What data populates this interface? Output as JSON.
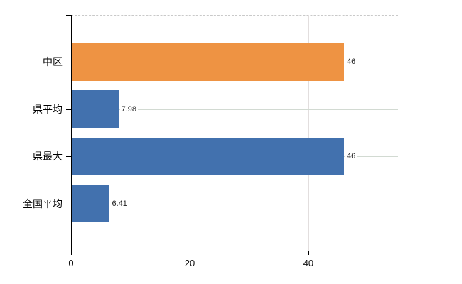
{
  "chart_data": {
    "type": "bar",
    "orientation": "horizontal",
    "title": "",
    "xlabel": "",
    "ylabel": "",
    "categories": [
      "中区",
      "県平均",
      "県最大",
      "全国平均"
    ],
    "values": [
      46,
      7.98,
      46,
      6.41
    ],
    "value_labels": [
      "46",
      "7.98",
      "46",
      "6.41"
    ],
    "bar_colors": [
      "#ee9343",
      "#4271ae",
      "#4271ae",
      "#4271ae"
    ],
    "xlim": [
      0,
      55.1
    ],
    "x_ticks": [
      0,
      20,
      40
    ],
    "x_tick_labels": [
      "0",
      "20",
      "40"
    ],
    "grid": true,
    "legend": false,
    "colors": {
      "accent_orange": "#ee9343",
      "accent_blue": "#4271ae",
      "horizontal_grid": "#d2dad2",
      "vertical_grid": "#e2dede",
      "axis": "#000000",
      "top_border_dashed": "#c9c9c9"
    }
  }
}
